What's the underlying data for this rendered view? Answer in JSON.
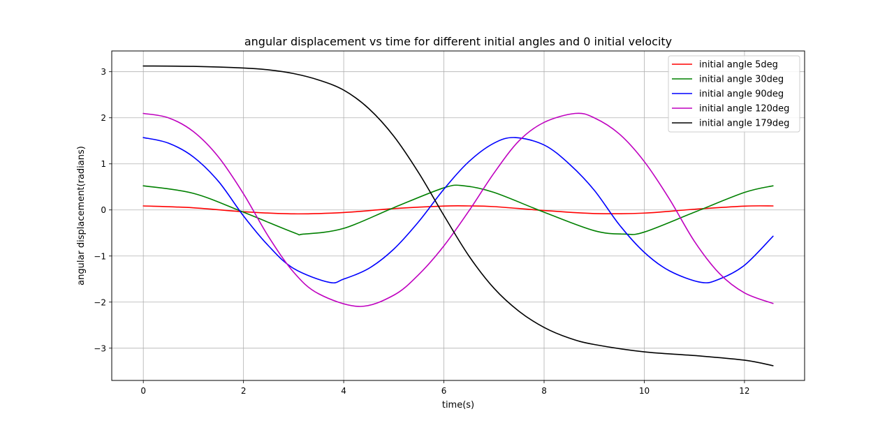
{
  "chart_data": {
    "type": "line",
    "title": "angular displacement vs time for different initial angles and 0 initial velocity",
    "xlabel": "time(s)",
    "ylabel": "angular displacement(radians)",
    "xlim": [
      -0.63,
      13.2
    ],
    "ylim": [
      -3.7,
      3.45
    ],
    "xticks": [
      0,
      2,
      4,
      6,
      8,
      10,
      12
    ],
    "yticks": [
      3,
      2,
      1,
      0,
      -1,
      -2,
      -3
    ],
    "xtick_labels": [
      "0",
      "2",
      "4",
      "6",
      "8",
      "10",
      "12"
    ],
    "ytick_labels": [
      "3",
      "2",
      "1",
      "0",
      "−1",
      "−2",
      "−3"
    ],
    "grid": true,
    "legend_position": "top-right",
    "series": [
      {
        "name": "initial angle 5deg",
        "color": "#ff0000",
        "x": [
          0,
          1,
          2,
          3,
          4,
          5,
          6,
          6.5,
          7,
          8,
          9,
          10,
          11,
          12,
          12.57
        ],
        "y": [
          0.087,
          0.047,
          -0.039,
          -0.085,
          -0.056,
          0.029,
          0.084,
          0.087,
          0.072,
          -0.012,
          -0.078,
          -0.068,
          0.015,
          0.083,
          0.087
        ]
      },
      {
        "name": "initial angle 30deg",
        "color": "#008000",
        "x": [
          0,
          1,
          2,
          3,
          3.2,
          4,
          5,
          6,
          6.4,
          7,
          8,
          9,
          9.6,
          10,
          11,
          12,
          12.57
        ],
        "y": [
          0.524,
          0.36,
          -0.05,
          -0.49,
          -0.524,
          -0.4,
          0.05,
          0.48,
          0.524,
          0.38,
          -0.05,
          -0.45,
          -0.524,
          -0.48,
          -0.05,
          0.38,
          0.524
        ]
      },
      {
        "name": "initial angle 90deg",
        "color": "#0000ff",
        "x": [
          0,
          0.5,
          1,
          1.5,
          2,
          2.5,
          3,
          3.71,
          4,
          4.5,
          5,
          5.5,
          6,
          6.5,
          7,
          7.42,
          8,
          8.5,
          9,
          9.5,
          10,
          10.5,
          11.13,
          11.5,
          12,
          12.57
        ],
        "y": [
          1.571,
          1.45,
          1.15,
          0.62,
          -0.13,
          -0.78,
          -1.27,
          -1.571,
          -1.5,
          -1.27,
          -0.85,
          -0.25,
          0.45,
          1.05,
          1.45,
          1.571,
          1.41,
          1.0,
          0.43,
          -0.32,
          -0.92,
          -1.32,
          -1.571,
          -1.5,
          -1.2,
          -0.57
        ]
      },
      {
        "name": "initial angle 120deg",
        "color": "#bf00bf",
        "x": [
          0,
          0.5,
          1,
          1.5,
          2,
          2.5,
          3,
          3.5,
          4.31,
          5,
          5.5,
          6,
          6.5,
          7,
          7.5,
          8,
          8.62,
          9,
          9.5,
          10,
          10.5,
          11,
          11.5,
          12,
          12.57
        ],
        "y": [
          2.094,
          2.0,
          1.7,
          1.15,
          0.35,
          -0.58,
          -1.35,
          -1.82,
          -2.094,
          -1.85,
          -1.4,
          -0.78,
          -0.02,
          0.8,
          1.5,
          1.9,
          2.094,
          2.0,
          1.65,
          1.05,
          0.24,
          -0.68,
          -1.38,
          -1.8,
          -2.03
        ]
      },
      {
        "name": "initial angle 179deg",
        "color": "#000000",
        "x": [
          0,
          1,
          2,
          2.5,
          3,
          3.5,
          4,
          4.5,
          5,
          5.5,
          6,
          6.5,
          7,
          7.5,
          8,
          8.5,
          9,
          10,
          11,
          12,
          12.57
        ],
        "y": [
          3.124,
          3.115,
          3.08,
          3.04,
          2.96,
          2.82,
          2.6,
          2.2,
          1.6,
          0.8,
          -0.12,
          -1.0,
          -1.7,
          -2.2,
          -2.55,
          -2.78,
          -2.92,
          -3.08,
          -3.16,
          -3.26,
          -3.38
        ]
      }
    ]
  }
}
